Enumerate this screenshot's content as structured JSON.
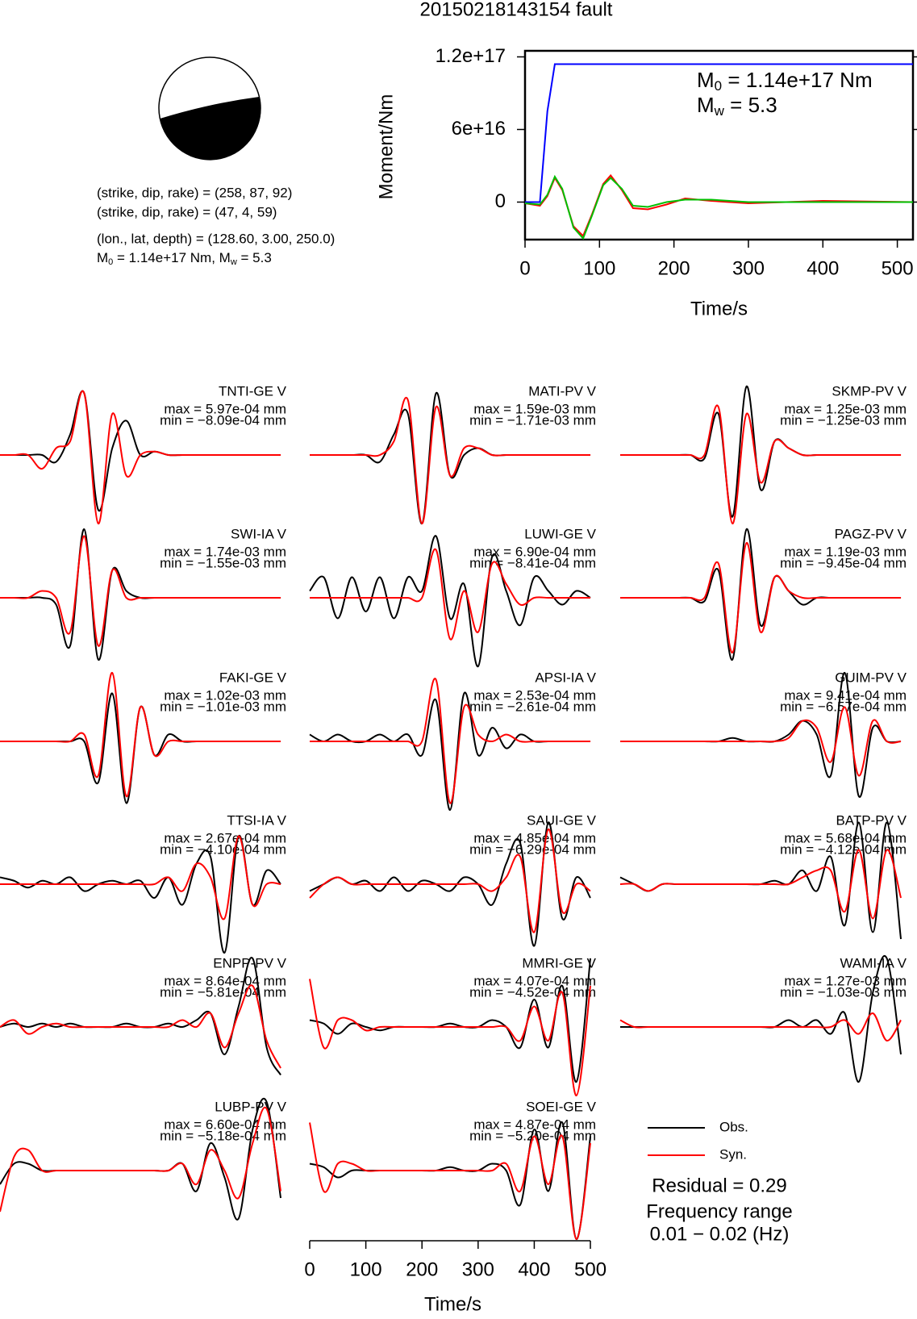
{
  "title": "20150218143154 fault",
  "mechanism": {
    "lines": [
      "(strike, dip, rake) = (258, 87, 92)",
      "(strike, dip, rake) = (47, 4, 59)",
      "(lon., lat, depth) = (128.60, 3.00, 250.0)"
    ],
    "moment_parts": [
      "M",
      "0",
      " = 1.14e+17 Nm, M",
      "w",
      " = 5.3"
    ]
  },
  "chart_data": [
    {
      "type": "line",
      "ylabel": "Moment/Nm",
      "xlabel": "Time/s",
      "xlim": [
        0,
        521
      ],
      "xticks": [
        0,
        100,
        200,
        300,
        400,
        500
      ],
      "ylim": [
        -3.1e+16,
        1.25e+17
      ],
      "yticks": [
        0,
        {
          "value": 6e+16,
          "label": "6e+16"
        },
        {
          "value": 1.2e+17,
          "label": "1.2e+17"
        }
      ],
      "annotations": [
        {
          "symbol": "M",
          "sub": "0",
          "text": " = 1.14e+17 Nm"
        },
        {
          "symbol": "M",
          "sub": "w",
          "text": " = 5.3"
        }
      ],
      "series": [
        {
          "color": "#0000ff",
          "x": [
            0,
            20,
            30,
            40,
            521
          ],
          "values": [
            0,
            0,
            7.5e+16,
            1.14e+17,
            1.14e+17
          ]
        },
        {
          "color": "#ff0000",
          "x": [
            0,
            20,
            30,
            40,
            50,
            65,
            78,
            90,
            105,
            115,
            130,
            145,
            165,
            190,
            215,
            250,
            300,
            400,
            521
          ],
          "values": [
            -1000000000000000.0,
            -3000000000000000.0,
            5000000000000000.0,
            2e+16,
            1e+16,
            -2e+16,
            -2.8e+16,
            -1e+16,
            1.5e+16,
            2.2e+16,
            1e+16,
            -5000000000000000.0,
            -6000000000000000.0,
            -2000000000000000.0,
            3000000000000000.0,
            1000000000000000.0,
            -1000000000000000.0,
            1000000000000000.0,
            0
          ]
        },
        {
          "color": "#00c000",
          "x": [
            0,
            20,
            30,
            40,
            50,
            65,
            78,
            90,
            105,
            115,
            130,
            145,
            165,
            190,
            215,
            250,
            300,
            400,
            521
          ],
          "values": [
            -1000000000000000.0,
            -2000000000000000.0,
            6000000000000000.0,
            2.1e+16,
            1.1e+16,
            -2.1e+16,
            -3e+16,
            -1.1e+16,
            1.4e+16,
            2e+16,
            1.1e+16,
            -3000000000000000.0,
            -4000000000000000.0,
            0,
            2000000000000000.0,
            2000000000000000.0,
            0,
            0,
            0
          ]
        }
      ]
    },
    {
      "type": "waveform",
      "xlabel": "Time/s",
      "xlim": [
        0,
        510
      ],
      "xticks": [
        0,
        100,
        200,
        300,
        400,
        500
      ],
      "obs_color": "#000000",
      "syn_color": "#ff0000",
      "legend": {
        "obs": "Obs.",
        "syn": "Syn.",
        "residual": "Residual = 0.29",
        "freq_title": "Frequency range",
        "freq": "0.01 − 0.02 (Hz)"
      },
      "x": [
        0,
        25,
        50,
        75,
        100,
        125,
        150,
        175,
        200,
        225,
        250,
        275,
        300,
        325,
        350,
        375,
        400,
        425,
        450,
        475,
        500
      ],
      "panels": [
        {
          "station": "TNTI-GE V",
          "max": "max = 5.97e-04 mm",
          "min": "min = −8.09e-04 mm",
          "obs": [
            0,
            0,
            0,
            0,
            -0.1,
            0.3,
            0.9,
            -0.8,
            0.1,
            0.5,
            0,
            0.05,
            0,
            0,
            0,
            0,
            0,
            0,
            0,
            0,
            0
          ],
          "syn": [
            0,
            0,
            0,
            -0.2,
            0.1,
            0.2,
            0.9,
            -1,
            0.6,
            -0.3,
            0,
            0.05,
            0,
            0,
            0,
            0,
            0,
            0,
            0,
            0,
            0
          ]
        },
        {
          "station": "MATI-PV V",
          "max": "max = 1.59e-03 mm",
          "min": "min = −1.71e-03 mm",
          "obs": [
            0,
            0,
            0,
            0,
            0,
            -0.1,
            0.3,
            0.6,
            -1,
            0.9,
            -0.3,
            0,
            0.1,
            0,
            0,
            0,
            0,
            0,
            0,
            0,
            0
          ],
          "syn": [
            0,
            0,
            0,
            0,
            0,
            0,
            0.2,
            0.8,
            -1,
            0.7,
            -0.3,
            0.1,
            0.1,
            0,
            0,
            0,
            0,
            0,
            0,
            0,
            0
          ]
        },
        {
          "station": "SKMP-PV V",
          "max": "max = 1.25e-03 mm",
          "min": "min = −1.25e-03 mm",
          "obs": [
            0,
            0,
            0,
            0,
            0,
            0,
            -0.05,
            0.6,
            -0.9,
            1,
            -0.5,
            0.2,
            0.1,
            0,
            0,
            0,
            0,
            0,
            0,
            0,
            0
          ],
          "syn": [
            0,
            0,
            0,
            0,
            0,
            0,
            0,
            0.7,
            -1,
            0.6,
            -0.4,
            0.2,
            0.1,
            0,
            0,
            0,
            0,
            0,
            0,
            0,
            0
          ]
        },
        {
          "station": "SWI-IA V",
          "max": "max = 1.74e-03 mm",
          "min": "min = −1.55e-03 mm",
          "obs": [
            0,
            0,
            0,
            0,
            -0.1,
            -0.7,
            1,
            -0.9,
            0.4,
            0.1,
            0,
            0,
            0,
            0,
            0,
            0,
            0,
            0,
            0,
            0,
            0
          ],
          "syn": [
            0,
            0,
            0,
            0.1,
            0,
            -0.5,
            0.9,
            -0.7,
            0.4,
            0,
            0,
            0,
            0,
            0,
            0,
            0,
            0,
            0,
            0,
            0,
            0
          ]
        },
        {
          "station": "LUWI-GE V",
          "max": "max = 6.90e-04 mm",
          "min": "min = −8.41e-04 mm",
          "obs": [
            0.1,
            0.3,
            -0.3,
            0.3,
            -0.2,
            0.3,
            -0.3,
            0.3,
            0.1,
            0.9,
            -0.3,
            0.2,
            -1,
            0.6,
            0.1,
            -0.4,
            0.3,
            0.1,
            -0.1,
            0.1,
            0
          ],
          "syn": [
            0,
            0,
            0,
            0,
            0,
            0,
            0,
            0,
            0,
            0.7,
            -0.6,
            0.1,
            -0.5,
            0.5,
            0.2,
            -0.1,
            0,
            0,
            0,
            0,
            0
          ]
        },
        {
          "station": "PAGZ-PV V",
          "max": "max = 1.19e-03 mm",
          "min": "min = −9.45e-04 mm",
          "obs": [
            0,
            0,
            0,
            0,
            0,
            0,
            -0.05,
            0.4,
            -0.9,
            1,
            -0.4,
            0.3,
            0.1,
            -0.1,
            0,
            0,
            0,
            0,
            0,
            0,
            0
          ],
          "syn": [
            0,
            0,
            0,
            0,
            0,
            0,
            0,
            0.5,
            -0.8,
            0.8,
            -0.5,
            0.3,
            0.1,
            0,
            0,
            0,
            0,
            0,
            0,
            0,
            0
          ]
        },
        {
          "station": "FAKI-GE V",
          "max": "max = 1.02e-03 mm",
          "min": "min = −1.01e-03 mm",
          "obs": [
            0,
            0,
            0,
            0,
            0,
            0,
            0,
            -0.6,
            0.7,
            -0.9,
            0.5,
            -0.2,
            0.1,
            0,
            0,
            0,
            0,
            0,
            0,
            0,
            0
          ],
          "syn": [
            0,
            0,
            0,
            0,
            0,
            0,
            0.1,
            -0.5,
            1,
            -0.8,
            0.5,
            -0.2,
            0,
            0,
            0,
            0,
            0,
            0,
            0,
            0,
            0
          ]
        },
        {
          "station": "APSI-IA V",
          "max": "max = 2.53e-04 mm",
          "min": "min = −2.61e-04 mm",
          "obs": [
            0.1,
            0,
            0.1,
            0,
            0,
            0.1,
            0,
            0.1,
            -0.2,
            0.6,
            -1,
            0.7,
            -0.2,
            0.2,
            -0.1,
            0.1,
            0,
            0,
            0,
            0,
            0
          ],
          "syn": [
            0,
            0,
            0,
            0,
            0,
            0,
            0,
            0,
            0,
            0.9,
            -0.9,
            0.5,
            0.1,
            0,
            0.1,
            0,
            0,
            0,
            0,
            0,
            0
          ]
        },
        {
          "station": "GUIM-PV V",
          "max": "max = 9.41e-04 mm",
          "min": "min = −6.57e-04 mm",
          "obs": [
            0,
            0,
            0,
            0,
            0,
            0,
            0,
            0,
            0.05,
            0,
            0,
            0,
            0.1,
            0.3,
            0.1,
            -0.5,
            1,
            -0.8,
            0.2,
            0,
            0
          ],
          "syn": [
            0,
            0,
            0,
            0,
            0,
            0,
            0,
            0,
            0,
            0,
            0,
            0,
            0.05,
            0.3,
            0.2,
            -0.3,
            0.5,
            -0.5,
            0.3,
            0,
            0
          ]
        },
        {
          "station": "TTSI-IA V",
          "max": "max = 2.67e-04 mm",
          "min": "min = −4.10e-04 mm",
          "obs": [
            0.1,
            0.05,
            -0.05,
            0.05,
            0,
            0.1,
            -0.1,
            0,
            0.05,
            0,
            0.05,
            -0.2,
            0.1,
            -0.3,
            0.3,
            0.4,
            -1,
            0.7,
            -0.3,
            0.2,
            0
          ],
          "syn": [
            0,
            0,
            0,
            0,
            0,
            0,
            0,
            0,
            0,
            0,
            0,
            0,
            0.1,
            -0.1,
            0.3,
            0.1,
            -0.5,
            0.7,
            -0.3,
            0,
            0
          ]
        },
        {
          "station": "SAUI-GE V",
          "max": "max = 4.85e-04 mm",
          "min": "min = −6.29e-04 mm",
          "obs": [
            -0.1,
            0,
            0.1,
            0,
            0.05,
            -0.1,
            0.1,
            -0.1,
            0.05,
            0,
            -0.1,
            0.1,
            0,
            -0.3,
            0.3,
            0.6,
            -0.9,
            0.9,
            -0.5,
            0.1,
            -0.2
          ],
          "syn": [
            -0.2,
            0,
            0.1,
            0,
            0,
            0,
            0,
            0,
            0,
            0,
            0,
            0,
            0,
            -0.1,
            0.1,
            0.4,
            -0.7,
            0.8,
            -0.4,
            0,
            -0.1
          ]
        },
        {
          "station": "BATP-PV V",
          "max": "max = 5.68e-04 mm",
          "min": "min = −4.12e-04 mm",
          "obs": [
            0.1,
            0,
            -0.1,
            0,
            0,
            0,
            0,
            0,
            0,
            0,
            0,
            0.05,
            0,
            0.2,
            -0.1,
            0.4,
            -0.6,
            0.9,
            -0.7,
            0.9,
            -0.8
          ],
          "syn": [
            0,
            0,
            -0.1,
            0,
            0,
            0,
            0,
            0,
            0,
            0,
            0,
            0,
            0,
            0.1,
            0.2,
            0.2,
            -0.4,
            0.5,
            -0.5,
            0.5,
            -0.2
          ]
        },
        {
          "station": "ENPP-PV V",
          "max": "max = 8.64e-04 mm",
          "min": "min = −5.81e-04 mm",
          "obs": [
            0,
            0.05,
            0,
            0.05,
            0,
            0.05,
            0,
            0,
            0,
            0.05,
            0,
            0,
            0.05,
            0,
            0.1,
            0.2,
            -0.4,
            0.3,
            1,
            -0.3,
            -0.7
          ],
          "syn": [
            0,
            0.1,
            -0.1,
            0,
            0.05,
            0,
            0,
            0,
            0,
            0,
            0,
            0,
            0,
            0.1,
            0,
            0.2,
            -0.3,
            0.2,
            0.6,
            -0.2,
            -0.6
          ]
        },
        {
          "station": "MMRI-GE V",
          "max": "max = 4.07e-04 mm",
          "min": "min = −4.52e-04 mm",
          "obs": [
            0.1,
            0.05,
            -0.1,
            0.05,
            0,
            -0.05,
            0,
            0,
            0,
            0,
            0.05,
            0,
            0,
            0.1,
            0,
            -0.3,
            0.4,
            -0.3,
            0.6,
            -0.8,
            1
          ],
          "syn": [
            0.7,
            -0.3,
            0.1,
            0.1,
            -0.05,
            0,
            0,
            0,
            0,
            0,
            0,
            0,
            0,
            0,
            0,
            -0.2,
            0.3,
            -0.2,
            0.5,
            -1,
            0.6
          ]
        },
        {
          "station": "WAMI-IA V",
          "max": "max = 1.27e-03 mm",
          "min": "min = −1.03e-03 mm",
          "obs": [
            0,
            0,
            0,
            0,
            0,
            0,
            0,
            0,
            0,
            0,
            0,
            0,
            0.1,
            0,
            0.1,
            -0.1,
            0.2,
            -0.8,
            0.5,
            1,
            -0.4
          ],
          "syn": [
            0.1,
            0,
            0,
            0,
            0,
            0,
            0,
            0,
            0,
            0,
            0,
            0,
            0,
            0,
            0,
            0,
            0.1,
            -0.1,
            0.2,
            -0.2,
            0.1
          ]
        },
        {
          "station": "LUBP-PV V",
          "max": "max = 6.60e-04 mm",
          "min": "min = −5.18e-04 mm",
          "obs": [
            -0.2,
            0.1,
            0.1,
            0,
            0,
            0,
            0,
            0,
            0,
            0,
            0,
            0,
            0,
            0.1,
            -0.3,
            0.4,
            -0.1,
            -0.7,
            0.6,
            1,
            -0.4
          ],
          "syn": [
            -0.6,
            0.2,
            0.3,
            0,
            0,
            0,
            0,
            0,
            0,
            0,
            0,
            0,
            0,
            0.1,
            -0.2,
            0.3,
            0,
            -0.4,
            0.4,
            0.9,
            -0.3
          ]
        },
        {
          "station": "SOEI-GE V",
          "max": "max = 4.87e-04 mm",
          "min": "min = −5.20e-04 mm",
          "obs": [
            0.1,
            0.05,
            -0.1,
            0,
            0,
            0,
            0,
            0,
            0,
            0,
            0.05,
            0,
            0,
            0.1,
            0,
            -0.5,
            0.6,
            -0.3,
            0.7,
            -1,
            0.5
          ],
          "syn": [
            0.7,
            -0.3,
            0.1,
            0.1,
            0,
            0,
            0,
            0,
            0,
            0,
            0,
            0,
            0,
            0,
            0.1,
            -0.3,
            0.5,
            -0.2,
            0.5,
            -1,
            0.4
          ]
        }
      ]
    }
  ]
}
